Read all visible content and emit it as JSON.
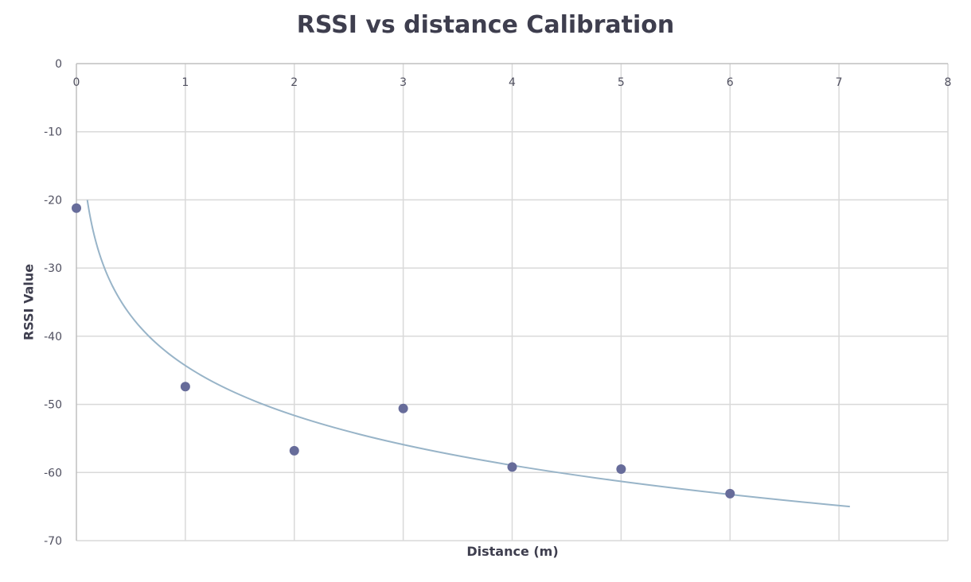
{
  "chart_data": {
    "type": "scatter",
    "title": "RSSI vs distance Calibration",
    "xlabel": "Distance (m)",
    "ylabel": "RSSI Value",
    "xlim": [
      0,
      8
    ],
    "ylim": [
      -70,
      0
    ],
    "x_ticks": [
      "0",
      "1",
      "2",
      "3",
      "4",
      "5",
      "6",
      "7",
      "8"
    ],
    "y_ticks": [
      "0",
      "-10",
      "-20",
      "-30",
      "-40",
      "-50",
      "-60",
      "-70"
    ],
    "x_axis_position": "top",
    "grid": true,
    "legend": "none",
    "series": [
      {
        "x": [
          0,
          1,
          2,
          3,
          4,
          5,
          6
        ],
        "y": [
          -21.2,
          -47.4,
          -56.8,
          -50.6,
          -59.2,
          -59.5,
          -63.1
        ]
      }
    ],
    "trendline": {
      "type": "logarithmic",
      "x_range": [
        0.1,
        7.1
      ],
      "y_range": [
        -20.0,
        -65.0
      ]
    },
    "colors": {
      "point": "#676c9a",
      "trendline": "#98b4c8",
      "grid": "#d9d9d9",
      "text": "#3e3e4e"
    }
  }
}
